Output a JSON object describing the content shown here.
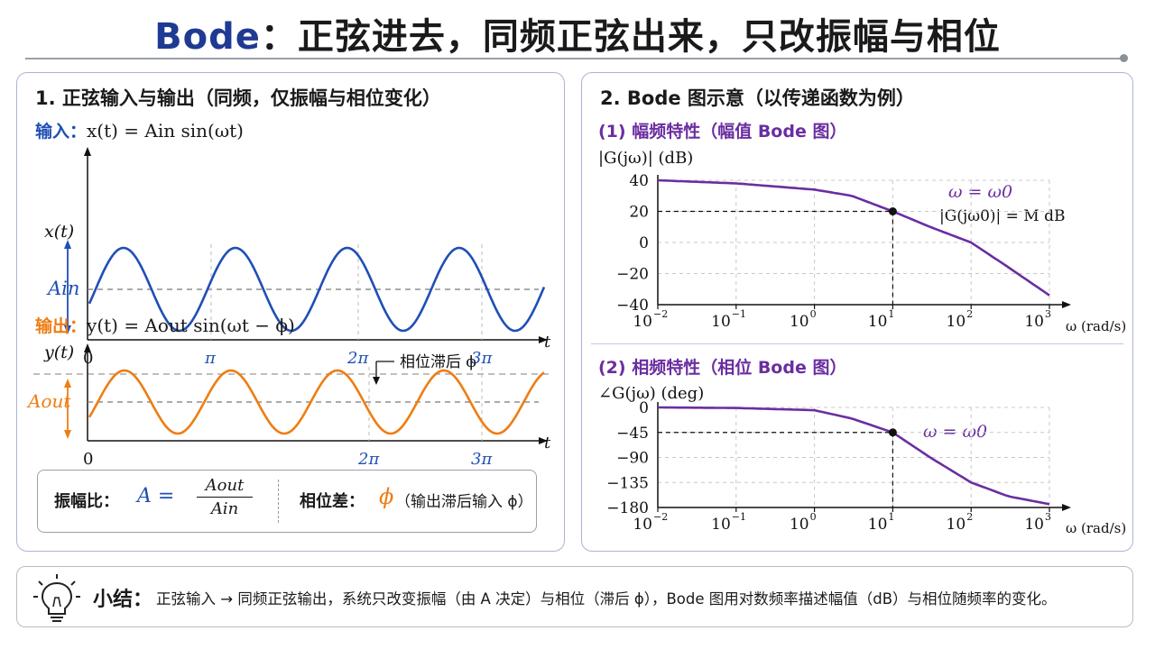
{
  "header": {
    "title_accent": "Bode",
    "title_rest": "：正弦进去，同频正弦出来，只改振幅与相位"
  },
  "left_panel": {
    "title": "1. 正弦输入与输出（同频，仅振幅与相位变化）",
    "input_label": "输入：",
    "input_formula": "x(t) = Ain sin(ωt)",
    "input_y_label": "x(t)",
    "input_amp_label": "Ain",
    "input_ticks": [
      "0",
      "π",
      "2π",
      "3π"
    ],
    "axis_t": "t",
    "output_label": "输出：",
    "output_formula": "y(t) = Aout sin(ωt − ϕ)",
    "output_y_label": "y(t)",
    "output_amp_label": "Aout",
    "output_ticks": [
      "0",
      "2π",
      "3π"
    ],
    "lag_annotation": "相位滞后 ϕ",
    "ratio_label": "振幅比：",
    "ratio_lhs": "A =",
    "ratio_num": "Aout",
    "ratio_den": "Ain",
    "phase_label": "相位差：",
    "phase_symbol": "ϕ",
    "phase_note": "（输出滞后输入 ϕ）"
  },
  "right_panel": {
    "title": "2. Bode 图示意（以传递函数为例）",
    "mag_heading": "(1) 幅频特性（幅值 Bode 图）",
    "mag_ylabel": "|G(jω)| (dB)",
    "mag_point_label": "ω = ω0",
    "mag_point_note": "|G(jω0)| = M dB",
    "phase_heading": "(2) 相频特性（相位 Bode 图）",
    "phase_ylabel": "∠G(jω) (deg)",
    "phase_point_label": "ω = ω0",
    "x_unit": "ω (rad/s)"
  },
  "chart_data": [
    {
      "type": "line",
      "title": "(1) 幅频特性（幅值 Bode 图）",
      "ylabel": "|G(jω)| (dB)",
      "xlabel": "ω (rad/s)",
      "xscale": "log",
      "xlim": [
        0.01,
        1000
      ],
      "ylim": [
        -40,
        40
      ],
      "x_ticks": [
        "10^-2",
        "10^-1",
        "10^0",
        "10^1",
        "10^2",
        "10^3"
      ],
      "y_ticks": [
        40,
        20,
        0,
        -20,
        -40
      ],
      "grid": true,
      "series": [
        {
          "x": [
            0.01,
            0.1,
            1,
            3,
            10,
            30,
            100,
            300,
            1000
          ],
          "values": [
            40,
            38,
            34,
            30,
            20,
            10,
            0,
            -16,
            -34
          ]
        }
      ],
      "marker": {
        "x": 10,
        "y": 20
      }
    },
    {
      "type": "line",
      "title": "(2) 相频特性（相位 Bode 图）",
      "ylabel": "∠G(jω) (deg)",
      "xlabel": "ω (rad/s)",
      "xscale": "log",
      "xlim": [
        0.01,
        1000
      ],
      "ylim": [
        -180,
        0
      ],
      "x_ticks": [
        "10^-2",
        "10^-1",
        "10^0",
        "10^1",
        "10^2",
        "10^3"
      ],
      "y_ticks": [
        0,
        -45,
        -90,
        -135,
        -180
      ],
      "grid": true,
      "series": [
        {
          "x": [
            0.01,
            0.1,
            1,
            3,
            10,
            30,
            100,
            300,
            1000
          ],
          "values": [
            0,
            -1,
            -5,
            -20,
            -45,
            -90,
            -135,
            -160,
            -174
          ]
        }
      ],
      "marker": {
        "x": 10,
        "y": -45
      }
    }
  ],
  "summary": {
    "label": "小结：",
    "text": "正弦输入 → 同频正弦输出，系统只改变振幅（由 A 决定）与相位（滞后 ϕ），Bode 图用对数频率描述幅值（dB）与相位随频率的变化。"
  },
  "colors": {
    "input_wave": "#1f4fb5",
    "output_wave": "#ee7d13",
    "bode_curve": "#6a2ea0",
    "accent": "#1f3a93"
  }
}
